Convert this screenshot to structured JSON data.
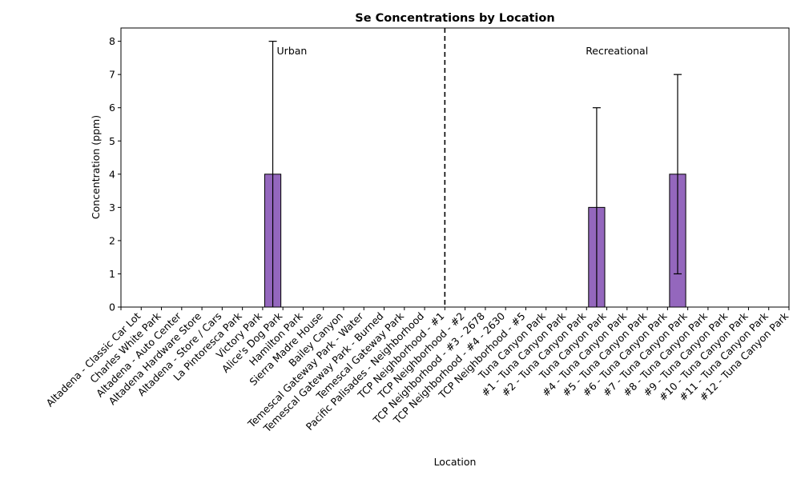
{
  "chart_data": {
    "type": "bar",
    "title": "Se Concentrations by Location",
    "xlabel": "Location",
    "ylabel": "Concentration (ppm)",
    "ylim": [
      0,
      8.4
    ],
    "yticks": [
      0,
      1,
      2,
      3,
      4,
      5,
      6,
      7,
      8
    ],
    "bar_color": "#9467bd",
    "categories": [
      "Altadena - Classic Car Lot",
      "Charles White Park",
      "Altadena - Auto Center",
      "Altadena Hardware Store",
      "Altadena - Store / Cars",
      "La Pintoresca Park",
      "Victory Park",
      "Alice's Dog Park",
      "Hamilton Park",
      "Sierra Madre House",
      "Bailey Canyon",
      "Temescal Gateway Park - Water",
      "Temescal Gateway Park - Burned",
      "Temescal Gateway Park",
      "Pacific Palisades - Neighborhood",
      "TCP Neighborhood - #1",
      "TCP Neighborhood - #2",
      "TCP Neighborhood - #3 - 2678",
      "TCP Neighborhood - #4 - 2630",
      "TCP Neighborhood - #5",
      "Tuna Canyon Park",
      "#1 - Tuna Canyon Park",
      "#2 - Tuna Canyon Park",
      "Tuna Canyon Park",
      "#4 - Tuna Canyon Park",
      "#5 - Tuna Canyon Park",
      "#6 - Tuna Canyon Park",
      "#7 - Tuna Canyon Park",
      "#8 - Tuna Canyon Park",
      "#9 - Tuna Canyon Park",
      "#10 - Tuna Canyon Park",
      "#11 - Tuna Canyon Park",
      "#12 - Tuna Canyon Park"
    ],
    "values": [
      0,
      0,
      0,
      0,
      0,
      0,
      0,
      4,
      0,
      0,
      0,
      0,
      0,
      0,
      0,
      0,
      0,
      0,
      0,
      0,
      0,
      0,
      0,
      3,
      0,
      0,
      0,
      4,
      0,
      0,
      0,
      0,
      0
    ],
    "error_bars": [
      {
        "category_index": 7,
        "low": 0,
        "high": 8
      },
      {
        "category_index": 23,
        "low": 0,
        "high": 6
      },
      {
        "category_index": 27,
        "low": 1,
        "high": 7
      }
    ],
    "divider": {
      "after_category_index": 15,
      "style": "dashed"
    },
    "annotations": [
      {
        "text": "Urban",
        "near_category_index": 7,
        "y": 7.7
      },
      {
        "text": "Recreational",
        "near_category_index": 24,
        "y": 7.7
      }
    ],
    "grid": false,
    "legend": "none"
  }
}
